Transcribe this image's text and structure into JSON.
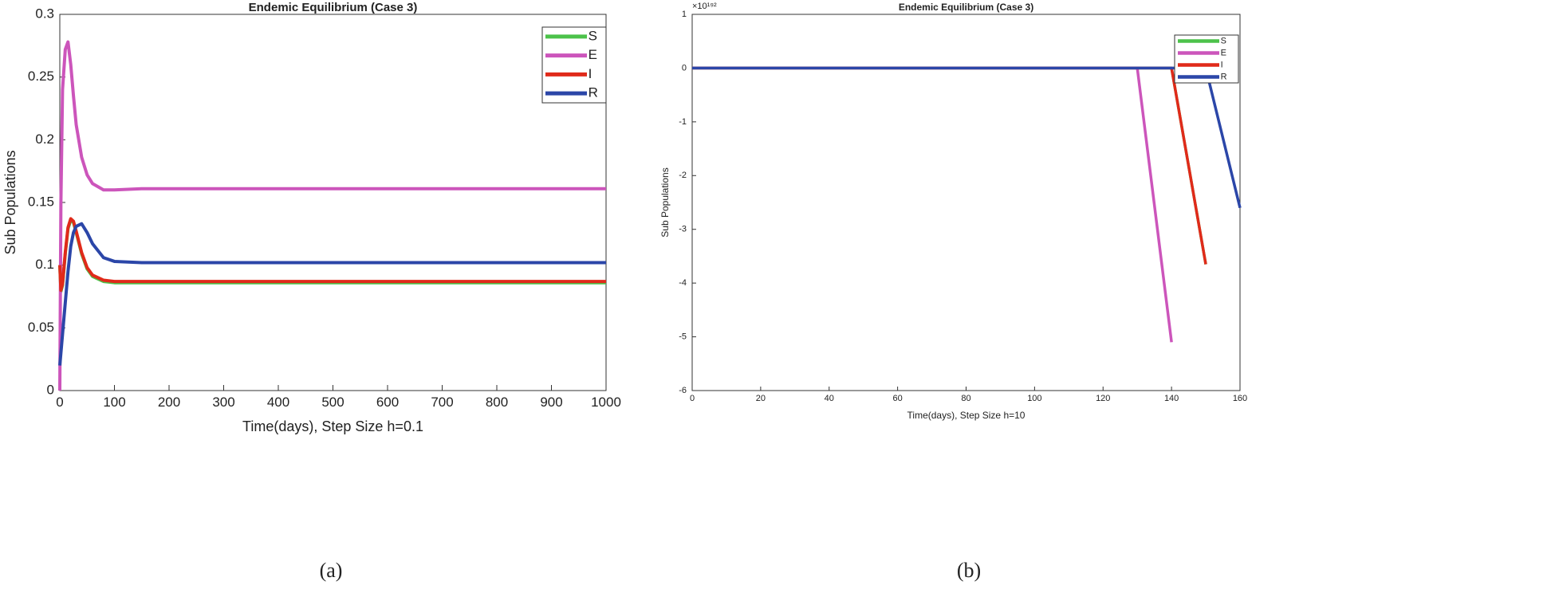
{
  "chart_data": [
    {
      "type": "line",
      "title": "Endemic Equilibrium (Case 3)",
      "x_label": "Time(days), Step Size h=0.1",
      "y_label": "Sub Populations",
      "caption": "(a)",
      "x": [
        0,
        2,
        5,
        10,
        15,
        20,
        25,
        30,
        40,
        50,
        60,
        80,
        100,
        150,
        200,
        400,
        600,
        800,
        1000
      ],
      "series": [
        {
          "name": "S",
          "color": "#4cc24a",
          "values": [
            0.1,
            0.079,
            0.084,
            0.109,
            0.129,
            0.136,
            0.134,
            0.126,
            0.109,
            0.097,
            0.091,
            0.087,
            0.086,
            0.086,
            0.086,
            0.086,
            0.086,
            0.086,
            0.086
          ]
        },
        {
          "name": "E",
          "color": "#cc55bb",
          "values": [
            0,
            0.15,
            0.24,
            0.272,
            0.278,
            0.26,
            0.235,
            0.212,
            0.186,
            0.172,
            0.165,
            0.16,
            0.16,
            0.161,
            0.161,
            0.161,
            0.161,
            0.161,
            0.161
          ]
        },
        {
          "name": "I",
          "color": "#e02a1a",
          "values": [
            0.1,
            0.08,
            0.085,
            0.11,
            0.13,
            0.137,
            0.135,
            0.127,
            0.11,
            0.098,
            0.092,
            0.088,
            0.087,
            0.087,
            0.087,
            0.087,
            0.087,
            0.087,
            0.087
          ]
        },
        {
          "name": "R",
          "color": "#2b46a8",
          "values": [
            0.02,
            0.03,
            0.045,
            0.07,
            0.095,
            0.115,
            0.126,
            0.131,
            0.133,
            0.126,
            0.117,
            0.106,
            0.103,
            0.102,
            0.102,
            0.102,
            0.102,
            0.102,
            0.102
          ]
        }
      ],
      "xlim": [
        0,
        1000
      ],
      "xticks": [
        0,
        100,
        200,
        300,
        400,
        500,
        600,
        700,
        800,
        900,
        1000
      ],
      "ylim": [
        0,
        0.3
      ],
      "yticks": [
        0,
        0.05,
        0.1,
        0.15,
        0.2,
        0.25,
        0.3
      ],
      "legend": "top-right"
    },
    {
      "type": "line",
      "title": "Endemic Equilibrium (Case 3)",
      "x_label": "Time(days), Step Size h=10",
      "y_label": "Sub Populations",
      "caption": "(b)",
      "y_multiplier": "×10¹⁹²",
      "x": [
        0,
        10,
        20,
        30,
        40,
        50,
        60,
        70,
        80,
        90,
        100,
        110,
        120,
        130,
        140,
        150,
        160
      ],
      "series": [
        {
          "name": "S",
          "color": "#4cc24a",
          "values": [
            0,
            0,
            0,
            0,
            0,
            0,
            0,
            0,
            0,
            0,
            0,
            0,
            0,
            0,
            0,
            -3.65,
            null
          ]
        },
        {
          "name": "E",
          "color": "#cc55bb",
          "values": [
            0,
            0,
            0,
            0,
            0,
            0,
            0,
            0,
            0,
            0,
            0,
            0,
            0,
            0,
            -5.1,
            null,
            null
          ]
        },
        {
          "name": "I",
          "color": "#e02a1a",
          "values": [
            0,
            0,
            0,
            0,
            0,
            0,
            0,
            0,
            0,
            0,
            0,
            0,
            0,
            0,
            0,
            -3.65,
            null
          ]
        },
        {
          "name": "R",
          "color": "#2b46a8",
          "values": [
            0,
            0,
            0,
            0,
            0,
            0,
            0,
            0,
            0,
            0,
            0,
            0,
            0,
            0,
            0,
            0,
            -2.6
          ]
        }
      ],
      "xlim": [
        0,
        160
      ],
      "xticks": [
        0,
        20,
        40,
        60,
        80,
        100,
        120,
        140,
        160
      ],
      "ylim": [
        -6,
        1
      ],
      "yticks": [
        -6,
        -5,
        -4,
        -3,
        -2,
        -1,
        0,
        1
      ],
      "legend": "top-right"
    }
  ]
}
